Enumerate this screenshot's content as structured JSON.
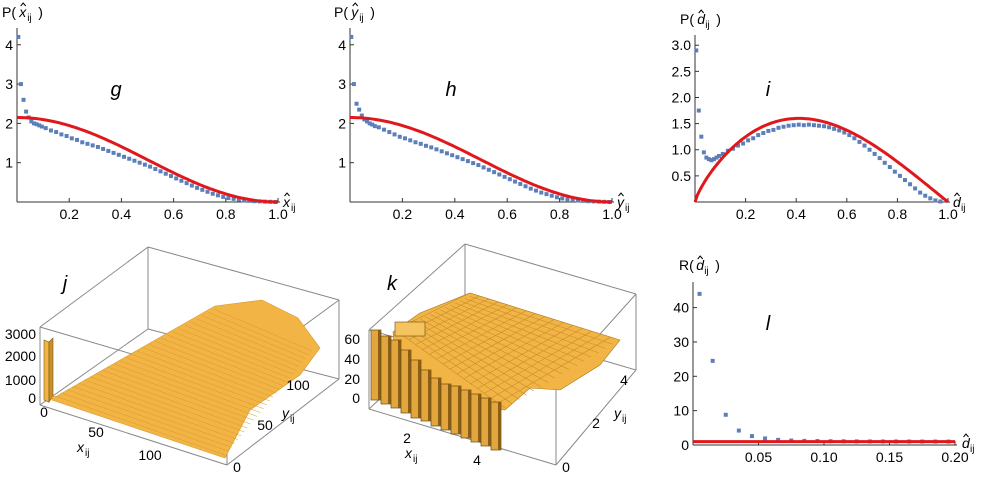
{
  "chart_data": [
    {
      "id": "g",
      "type": "scatter",
      "panel_label": "g",
      "ylabel": {
        "base": "P(",
        "hat_var": "x",
        "sub": "ij",
        "close": ")"
      },
      "xlabel": {
        "hat_var": "x",
        "sub": "ij"
      },
      "xlim": [
        0,
        1
      ],
      "ylim": [
        0,
        4.3
      ],
      "xticks": [
        0.2,
        0.4,
        0.6,
        0.8,
        1.0
      ],
      "yticks": [
        1,
        2,
        3,
        4
      ],
      "series": [
        {
          "kind": "points",
          "color": "#5b7fb8",
          "x": [
            0.005,
            0.015,
            0.025,
            0.035,
            0.045,
            0.055,
            0.065,
            0.075,
            0.085,
            0.095,
            0.11,
            0.13,
            0.15,
            0.17,
            0.19,
            0.21,
            0.23,
            0.25,
            0.27,
            0.29,
            0.31,
            0.33,
            0.35,
            0.37,
            0.39,
            0.41,
            0.43,
            0.45,
            0.47,
            0.49,
            0.51,
            0.53,
            0.55,
            0.57,
            0.59,
            0.61,
            0.63,
            0.65,
            0.67,
            0.69,
            0.71,
            0.73,
            0.75,
            0.77,
            0.79,
            0.81,
            0.83,
            0.85,
            0.87,
            0.89,
            0.91,
            0.93,
            0.95,
            0.97,
            0.99
          ],
          "y": [
            4.2,
            3.0,
            2.6,
            2.3,
            2.15,
            2.05,
            2.0,
            1.98,
            1.95,
            1.92,
            1.88,
            1.82,
            1.78,
            1.72,
            1.68,
            1.62,
            1.58,
            1.52,
            1.48,
            1.44,
            1.4,
            1.35,
            1.3,
            1.25,
            1.2,
            1.15,
            1.1,
            1.05,
            1.0,
            0.95,
            0.9,
            0.84,
            0.78,
            0.72,
            0.66,
            0.6,
            0.54,
            0.48,
            0.42,
            0.36,
            0.31,
            0.26,
            0.21,
            0.17,
            0.13,
            0.1,
            0.08,
            0.06,
            0.04,
            0.03,
            0.02,
            0.015,
            0.01,
            0.005,
            0.0
          ]
        },
        {
          "kind": "curve",
          "color": "#e0181b",
          "fn": "cos",
          "a": 2.15
        }
      ]
    },
    {
      "id": "h",
      "type": "scatter",
      "panel_label": "h",
      "ylabel": {
        "base": "P(",
        "hat_var": "y",
        "sub": "ij",
        "close": ")"
      },
      "xlabel": {
        "hat_var": "y",
        "sub": "ij"
      },
      "xlim": [
        0,
        1
      ],
      "ylim": [
        0,
        4.3
      ],
      "xticks": [
        0.2,
        0.4,
        0.6,
        0.8,
        1.0
      ],
      "yticks": [
        1,
        2,
        3,
        4
      ],
      "series": [
        {
          "kind": "points",
          "color": "#5b7fb8",
          "x": [
            0.005,
            0.015,
            0.025,
            0.035,
            0.045,
            0.055,
            0.065,
            0.075,
            0.085,
            0.095,
            0.11,
            0.13,
            0.15,
            0.17,
            0.19,
            0.21,
            0.23,
            0.25,
            0.27,
            0.29,
            0.31,
            0.33,
            0.35,
            0.37,
            0.39,
            0.41,
            0.43,
            0.45,
            0.47,
            0.49,
            0.51,
            0.53,
            0.55,
            0.57,
            0.59,
            0.61,
            0.63,
            0.65,
            0.67,
            0.69,
            0.71,
            0.73,
            0.75,
            0.77,
            0.79,
            0.81,
            0.83,
            0.85,
            0.87,
            0.89,
            0.91,
            0.93,
            0.95,
            0.97,
            0.99
          ],
          "y": [
            4.2,
            3.0,
            2.5,
            2.35,
            2.2,
            2.1,
            2.05,
            2.0,
            1.97,
            1.93,
            1.9,
            1.84,
            1.78,
            1.72,
            1.66,
            1.62,
            1.57,
            1.52,
            1.48,
            1.43,
            1.39,
            1.34,
            1.29,
            1.24,
            1.19,
            1.14,
            1.09,
            1.04,
            0.99,
            0.94,
            0.88,
            0.82,
            0.76,
            0.7,
            0.64,
            0.58,
            0.52,
            0.46,
            0.4,
            0.34,
            0.29,
            0.24,
            0.2,
            0.16,
            0.12,
            0.09,
            0.07,
            0.05,
            0.04,
            0.03,
            0.02,
            0.015,
            0.01,
            0.005,
            0.0
          ]
        },
        {
          "kind": "curve",
          "color": "#e0181b",
          "fn": "cos",
          "a": 2.15
        }
      ]
    },
    {
      "id": "i",
      "type": "scatter",
      "panel_label": "i",
      "ylabel": {
        "base": "P(",
        "hat_var": "d",
        "sub": "ij",
        "close": ")"
      },
      "xlabel": {
        "hat_var": "d",
        "sub": "ij"
      },
      "xlim": [
        0,
        1
      ],
      "ylim": [
        0,
        3.1
      ],
      "xticks": [
        0.2,
        0.4,
        0.6,
        0.8,
        1.0
      ],
      "yticks": [
        0.5,
        1.0,
        1.5,
        2.0,
        2.5,
        3.0
      ],
      "series": [
        {
          "kind": "points",
          "color": "#5b7fb8",
          "x": [
            0.005,
            0.015,
            0.025,
            0.035,
            0.045,
            0.055,
            0.065,
            0.075,
            0.085,
            0.095,
            0.11,
            0.13,
            0.15,
            0.17,
            0.19,
            0.21,
            0.23,
            0.25,
            0.27,
            0.29,
            0.31,
            0.33,
            0.35,
            0.37,
            0.39,
            0.41,
            0.43,
            0.45,
            0.47,
            0.49,
            0.51,
            0.53,
            0.55,
            0.57,
            0.59,
            0.61,
            0.63,
            0.65,
            0.67,
            0.69,
            0.71,
            0.73,
            0.75,
            0.77,
            0.79,
            0.81,
            0.83,
            0.85,
            0.87,
            0.89,
            0.91,
            0.93,
            0.95,
            0.97
          ],
          "y": [
            2.9,
            1.75,
            1.25,
            0.95,
            0.85,
            0.82,
            0.8,
            0.82,
            0.85,
            0.88,
            0.92,
            0.98,
            1.02,
            1.08,
            1.12,
            1.18,
            1.22,
            1.28,
            1.32,
            1.36,
            1.38,
            1.42,
            1.44,
            1.46,
            1.47,
            1.48,
            1.47,
            1.48,
            1.47,
            1.46,
            1.45,
            1.43,
            1.4,
            1.37,
            1.33,
            1.28,
            1.22,
            1.15,
            1.08,
            1.0,
            0.92,
            0.84,
            0.75,
            0.67,
            0.58,
            0.5,
            0.42,
            0.34,
            0.26,
            0.18,
            0.12,
            0.07,
            0.03,
            0.01
          ]
        },
        {
          "kind": "curve",
          "color": "#e0181b",
          "fn": "sinpow",
          "a": 1.6
        }
      ]
    },
    {
      "id": "j",
      "type": "bar3d",
      "panel_label": "j",
      "xlabel": {
        "var": "x",
        "sub": "ij"
      },
      "ylabel": {
        "var": "y",
        "sub": "ij"
      },
      "x_ticks": [
        "0",
        "50",
        "100"
      ],
      "y_ticks": [
        "0",
        "50",
        "100"
      ],
      "z_ticks": [
        "0",
        "1000",
        "2000",
        "3000"
      ],
      "color": "#f2b445"
    },
    {
      "id": "k",
      "type": "bar3d",
      "panel_label": "k",
      "xlabel": {
        "var": "x",
        "sub": "ij"
      },
      "ylabel": {
        "var": "y",
        "sub": "ij"
      },
      "x_ticks": [
        "2",
        "4"
      ],
      "y_ticks": [
        "0",
        "2",
        "4"
      ],
      "z_ticks": [
        "0",
        "20",
        "40",
        "60"
      ],
      "color": "#f2b445"
    },
    {
      "id": "l",
      "type": "scatter",
      "panel_label": "l",
      "ylabel": {
        "base": "R(",
        "hat_var": "d",
        "sub": "ij",
        "close": ")"
      },
      "xlabel": {
        "hat_var": "d",
        "sub": "ij"
      },
      "xlim": [
        0,
        0.2
      ],
      "ylim": [
        0,
        46
      ],
      "xticks": [
        0.05,
        0.1,
        0.15,
        0.2
      ],
      "xtick_labels": [
        "0.05",
        "0.10",
        "0.15",
        "0.20"
      ],
      "yticks": [
        0,
        10,
        20,
        30,
        40
      ],
      "series": [
        {
          "kind": "points",
          "color": "#5b7fb8",
          "x": [
            0.005,
            0.015,
            0.025,
            0.035,
            0.045,
            0.055,
            0.065,
            0.075,
            0.085,
            0.095,
            0.105,
            0.115,
            0.125,
            0.135,
            0.145,
            0.155,
            0.165,
            0.175,
            0.185,
            0.195
          ],
          "y": [
            44,
            24.5,
            8.8,
            4.2,
            2.6,
            1.9,
            1.5,
            1.3,
            1.2,
            1.15,
            1.1,
            1.08,
            1.05,
            1.04,
            1.03,
            1.02,
            1.02,
            1.01,
            1.01,
            1.0
          ]
        },
        {
          "kind": "hline",
          "color": "#e0181b",
          "y": 1.0
        }
      ]
    }
  ]
}
